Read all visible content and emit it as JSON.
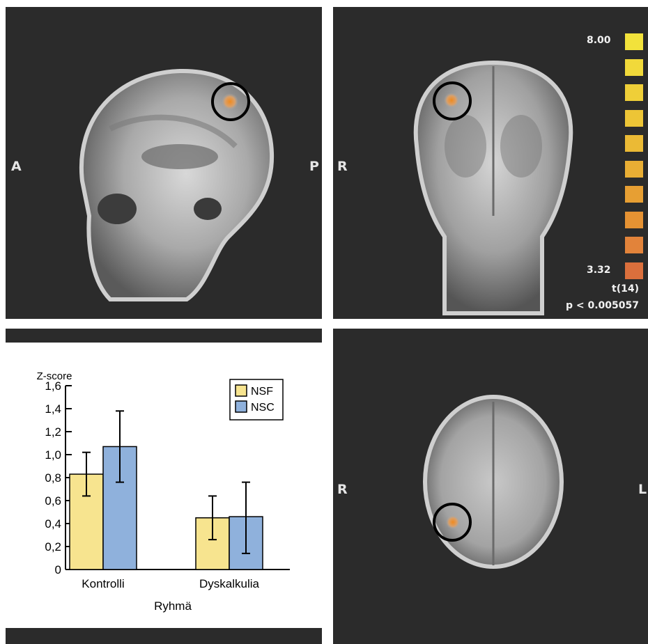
{
  "mri": {
    "sagittal": {
      "left_label": "A",
      "right_label": "P"
    },
    "coronal": {
      "left_label": "R"
    },
    "axial": {
      "left_label": "R",
      "right_label": "L"
    }
  },
  "colorbar": {
    "max_label": "8.00",
    "min_label": "3.32",
    "stat_label": "t(14)",
    "p_label": "p < 0.005057",
    "colors": [
      "#f2e23b",
      "#f1d93a",
      "#efcf38",
      "#edc536",
      "#ebba35",
      "#e9ae34",
      "#e79f33",
      "#e59233",
      "#e2833a",
      "#db6f3c"
    ]
  },
  "chart_data": {
    "type": "bar",
    "ylabel": "Z-score",
    "xlabel": "Ryhmä",
    "categories": [
      "Kontrolli",
      "Dyskalkulia"
    ],
    "ylim": [
      0,
      1.6
    ],
    "yticks": [
      "0",
      "0,2",
      "0,4",
      "0,6",
      "0,8",
      "1,0",
      "1,2",
      "1,4",
      "1,6"
    ],
    "legend_position": "top-right",
    "series": [
      {
        "name": "NSF",
        "color": "#f7e48f",
        "values": [
          0.83,
          0.45
        ],
        "err_low": [
          0.64,
          0.26
        ],
        "err_high": [
          1.02,
          0.64
        ]
      },
      {
        "name": "NSC",
        "color": "#8fb1dc",
        "values": [
          1.07,
          0.46
        ],
        "err_low": [
          0.76,
          0.14
        ],
        "err_high": [
          1.38,
          0.76
        ]
      }
    ]
  }
}
